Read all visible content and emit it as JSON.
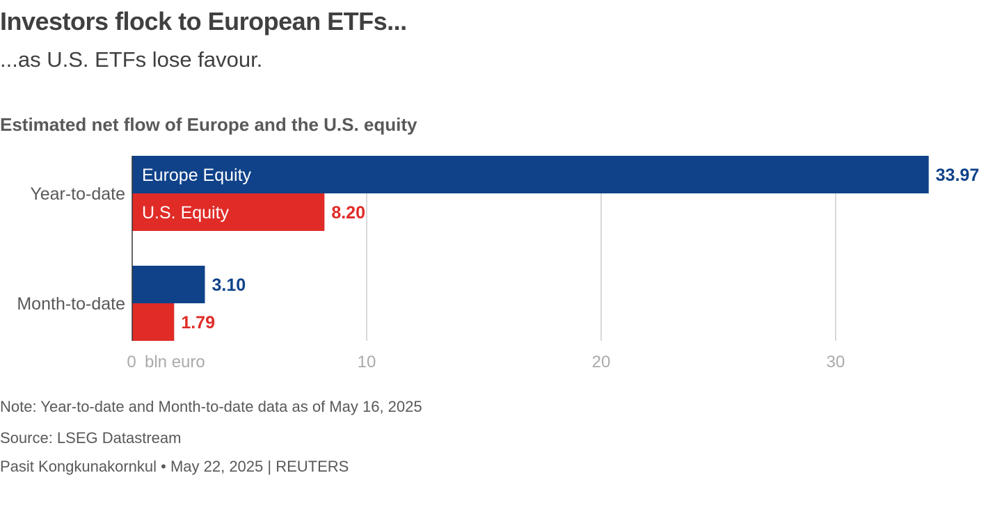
{
  "title": "Investors flock to European ETFs...",
  "subtitle": "...as U.S. ETFs lose favour.",
  "footer": {
    "note": "Note: Year-to-date and Month-to-date data as of May 16, 2025",
    "source": "Source: LSEG Datastream",
    "byline": "Pasit Kongkunakornkul • May 22, 2025 | REUTERS"
  },
  "chart_data": {
    "type": "bar",
    "orientation": "horizontal",
    "title": "Estimated net flow of Europe and the U.S. equity",
    "categories": [
      "Year-to-date",
      "Month-to-date"
    ],
    "series": [
      {
        "name": "Europe Equity",
        "color": "#0f4289",
        "values": [
          33.97,
          3.1
        ],
        "value_labels": [
          "33.97",
          "3.10"
        ]
      },
      {
        "name": "U.S. Equity",
        "color": "#e02b27",
        "values": [
          8.2,
          1.79
        ],
        "value_labels": [
          "8.20",
          "1.79"
        ]
      }
    ],
    "xlim": [
      0,
      34
    ],
    "xticks": [
      "0",
      "10",
      "20",
      "30"
    ],
    "xtick_values": [
      0,
      10,
      20,
      30
    ],
    "x_unit_label": "bln euro",
    "grid": true,
    "legend": "inline in first bars"
  }
}
